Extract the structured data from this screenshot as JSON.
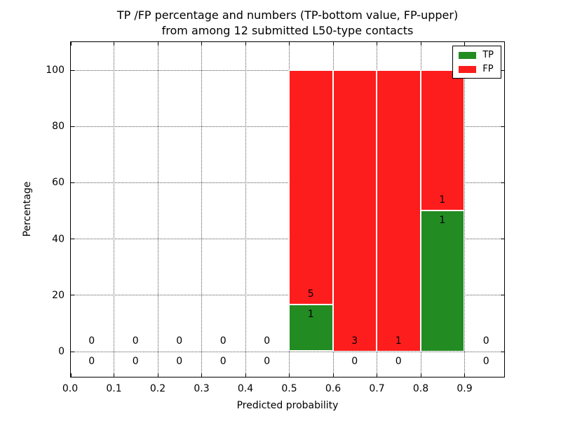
{
  "title": {
    "line1": "TP /FP percentage and numbers (TP-bottom value, FP-upper)",
    "line2": "from among 12 submitted L50-type contacts"
  },
  "axes": {
    "xlabel": "Predicted probability",
    "ylabel": "Percentage"
  },
  "legend": {
    "position": "upper right",
    "items": [
      {
        "label": "TP",
        "color": "#228B22"
      },
      {
        "label": "FP",
        "color": "#FD1D1D"
      }
    ]
  },
  "colors": {
    "tp_green": "#228B22",
    "fp_red": "#FD1D1D",
    "grid": "#555555",
    "spine": "#000000",
    "background": "#FFFFFF"
  },
  "chart_data": {
    "type": "bar",
    "stacked": true,
    "title": "TP /FP percentage and numbers (TP-bottom value, FP-upper)\nfrom among 12 submitted L50-type contacts",
    "xlabel": "Predicted probability",
    "ylabel": "Percentage",
    "total_contacts": 12,
    "annotation_note": "TP-bottom value, FP-upper",
    "bin_edges": [
      0.0,
      0.1,
      0.2,
      0.3,
      0.4,
      0.5,
      0.6,
      0.7,
      0.8,
      0.9,
      1.0
    ],
    "x_ticks": [
      0.0,
      0.1,
      0.2,
      0.3,
      0.4,
      0.5,
      0.6,
      0.7,
      0.8,
      0.9
    ],
    "x_tick_labels": [
      "0.0",
      "0.1",
      "0.2",
      "0.3",
      "0.4",
      "0.5",
      "0.6",
      "0.7",
      "0.8",
      "0.9"
    ],
    "y_ticks": [
      0,
      20,
      40,
      60,
      80,
      100
    ],
    "y_tick_labels": [
      "0",
      "20",
      "40",
      "60",
      "80",
      "100"
    ],
    "xlim": [
      0.0,
      0.992
    ],
    "ylim": [
      -9.2,
      110.2
    ],
    "grid": true,
    "grid_style": "dotted",
    "legend_position": "upper right",
    "values_unit": "percent of bin total",
    "series": [
      {
        "name": "TP",
        "color": "#228B22",
        "counts": [
          0,
          0,
          0,
          0,
          0,
          1,
          0,
          0,
          1,
          0
        ],
        "percent_heights": [
          0,
          0,
          0,
          0,
          0,
          16.7,
          0,
          0,
          50,
          0
        ]
      },
      {
        "name": "FP",
        "color": "#FD1D1D",
        "counts": [
          0,
          0,
          0,
          0,
          0,
          5,
          3,
          1,
          1,
          0
        ],
        "percent_heights": [
          0,
          0,
          0,
          0,
          0,
          83.3,
          100,
          100,
          50,
          0
        ]
      }
    ]
  }
}
